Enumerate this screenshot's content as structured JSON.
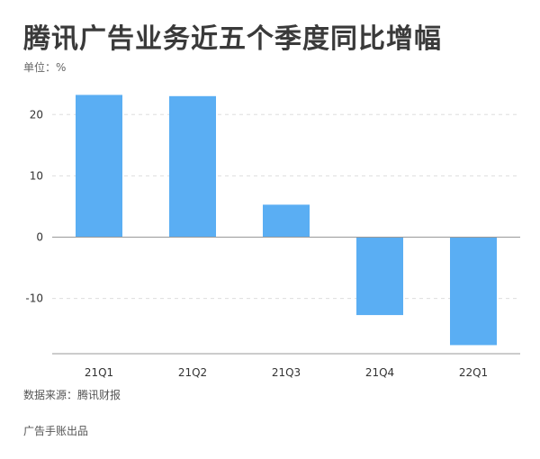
{
  "header": {
    "title": "腾讯广告业务近五个季度同比增幅",
    "unit": "单位：%"
  },
  "footer": {
    "source": "数据来源：腾讯财报",
    "credit": "广告手账出品"
  },
  "colors": {
    "bar": "#5aaef3",
    "grid": "#dddddd",
    "axis": "#999999"
  },
  "chart_data": {
    "type": "bar",
    "title": "腾讯广告业务近五个季度同比增幅",
    "xlabel": "",
    "ylabel": "单位：%",
    "categories": [
      "21Q1",
      "21Q2",
      "21Q3",
      "21Q4",
      "22Q1"
    ],
    "values": [
      23.2,
      23.0,
      5.3,
      -12.7,
      -17.6
    ],
    "yticks": [
      -10,
      0,
      10,
      20
    ],
    "ylim": [
      -19,
      24
    ],
    "grid": true,
    "legend": "none"
  }
}
